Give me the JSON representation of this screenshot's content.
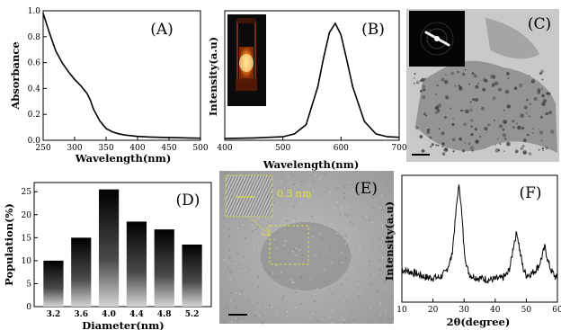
{
  "figure": {
    "panel_labels": [
      "(A)",
      "(B)",
      "(C)",
      "(D)",
      "(E)",
      "(F)"
    ],
    "scale_annotation_E": "0.3 nm"
  },
  "chart_data": [
    {
      "panel": "(A)",
      "type": "line",
      "xlabel": "Wavelength(nm)",
      "ylabel": "Absorbance",
      "xlim": [
        250,
        500
      ],
      "ylim": [
        0.0,
        1.0
      ],
      "xticks": [
        250,
        300,
        350,
        400,
        450,
        500
      ],
      "yticks": [
        0.0,
        0.2,
        0.4,
        0.6,
        0.8,
        1.0
      ],
      "ytick_labels": [
        "0.0",
        "0.2",
        "0.4",
        "0.6",
        "0.8",
        "1.0"
      ],
      "grid": false,
      "series": [
        {
          "x": [
            250,
            260,
            270,
            280,
            290,
            300,
            310,
            320,
            325,
            330,
            340,
            350,
            360,
            370,
            380,
            400,
            420,
            440,
            460,
            480,
            500
          ],
          "y": [
            0.98,
            0.83,
            0.69,
            0.6,
            0.53,
            0.47,
            0.42,
            0.36,
            0.31,
            0.24,
            0.15,
            0.09,
            0.065,
            0.05,
            0.04,
            0.03,
            0.025,
            0.022,
            0.02,
            0.018,
            0.016
          ]
        }
      ]
    },
    {
      "panel": "(B)",
      "type": "line",
      "xlabel": "Wavelength(nm)",
      "ylabel": "Intensity(a.u)",
      "xlim": [
        400,
        700
      ],
      "xticks": [
        400,
        500,
        600,
        700
      ],
      "yticks": [],
      "grid": false,
      "series": [
        {
          "x": [
            400,
            450,
            500,
            520,
            540,
            560,
            570,
            580,
            590,
            600,
            610,
            620,
            640,
            660,
            680,
            700
          ],
          "y": [
            0.0,
            0.005,
            0.015,
            0.04,
            0.12,
            0.45,
            0.7,
            0.92,
            1.0,
            0.9,
            0.68,
            0.45,
            0.15,
            0.04,
            0.015,
            0.01
          ]
        }
      ]
    },
    {
      "panel": "(D)",
      "type": "bar",
      "xlabel": "Diameter(nm)",
      "ylabel": "Population(%)",
      "categories": [
        "3.2",
        "3.6",
        "4.0",
        "4.4",
        "4.8",
        "5.2"
      ],
      "values": [
        10,
        15,
        25.5,
        18.5,
        16.8,
        13.5
      ],
      "ylim": [
        0,
        27
      ],
      "yticks": [
        0,
        5,
        10,
        15,
        20,
        25
      ],
      "grid": false
    },
    {
      "panel": "(F)",
      "type": "line",
      "xlabel": "2θ(degree)",
      "ylabel": "Intensity(a.u)",
      "xlim": [
        10,
        60
      ],
      "xticks": [
        10,
        20,
        30,
        40,
        50,
        60
      ],
      "yticks": [],
      "grid": false,
      "series": [
        {
          "x": [
            10,
            14,
            18,
            22,
            24,
            26,
            27,
            28,
            28.5,
            29,
            30,
            31,
            32,
            34,
            38,
            42,
            44,
            45,
            46,
            47,
            48,
            49,
            50,
            52,
            54,
            55,
            56,
            57,
            58,
            60
          ],
          "y": [
            0.27,
            0.24,
            0.2,
            0.2,
            0.24,
            0.38,
            0.65,
            0.95,
            1.0,
            0.85,
            0.45,
            0.28,
            0.22,
            0.2,
            0.18,
            0.19,
            0.23,
            0.32,
            0.5,
            0.6,
            0.42,
            0.28,
            0.22,
            0.24,
            0.3,
            0.38,
            0.47,
            0.34,
            0.26,
            0.18
          ]
        }
      ]
    }
  ]
}
